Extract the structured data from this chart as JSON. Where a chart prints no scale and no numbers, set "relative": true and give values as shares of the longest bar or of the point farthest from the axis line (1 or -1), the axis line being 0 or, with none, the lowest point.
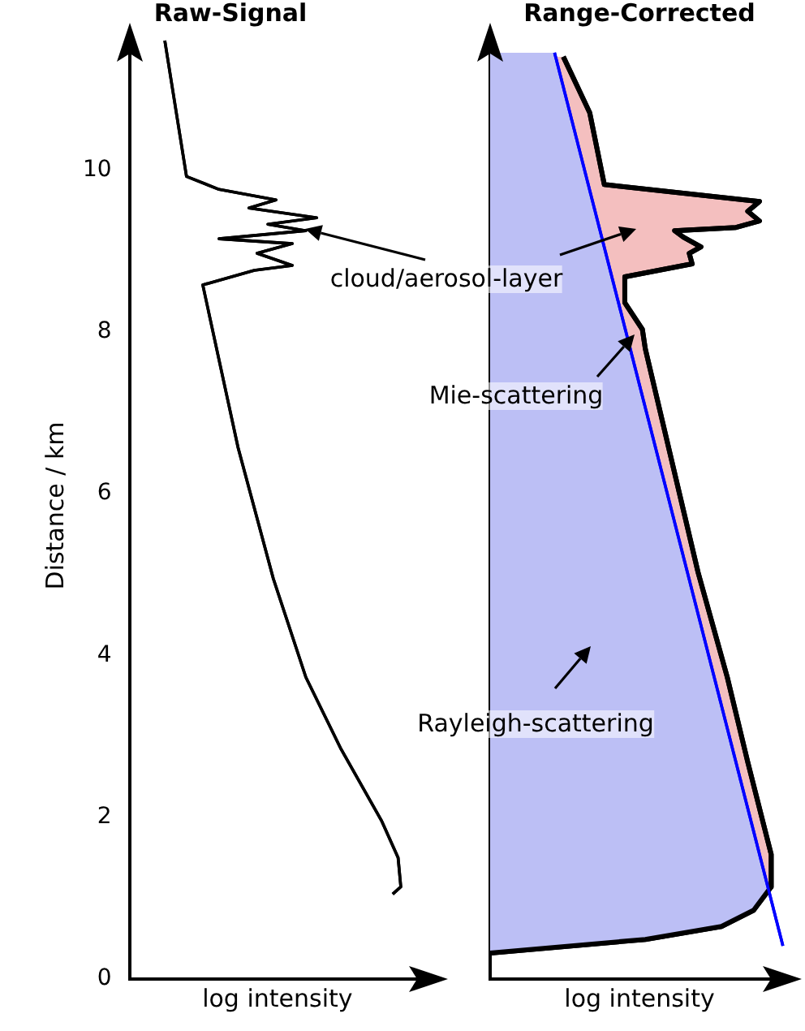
{
  "chart_data": [
    {
      "type": "line",
      "title": "Raw-Signal",
      "xlabel": "log intensity",
      "ylabel": "Distance / km",
      "orientation": "horizontal",
      "relative": true,
      "ylim": [
        0,
        11.7
      ],
      "yticks": [
        0,
        2,
        4,
        6,
        8,
        10
      ],
      "tick_labels": "y",
      "grid": false,
      "legend": false,
      "series": [
        {
          "color": "#000000",
          "x": [
            11.6,
            9.92,
            9.76,
            9.63,
            9.53,
            9.41,
            9.33,
            9.25,
            9.15,
            9.09,
            8.97,
            8.82,
            8.76,
            8.58,
            6.57,
            4.95,
            3.73,
            2.84,
            1.95,
            1.5,
            1.14,
            1.05
          ],
          "values": [
            0.13,
            0.21,
            0.33,
            0.54,
            0.44,
            0.69,
            0.51,
            0.65,
            0.33,
            0.6,
            0.47,
            0.6,
            0.46,
            0.27,
            0.4,
            0.53,
            0.65,
            0.78,
            0.93,
            0.99,
            1.0,
            0.97
          ]
        }
      ],
      "annotations": [
        "cloud/aerosol-layer"
      ]
    },
    {
      "type": "line",
      "title": "Range-Corrected",
      "xlabel": "log intensity",
      "orientation": "horizontal",
      "relative": true,
      "ylim": [
        0,
        11.7
      ],
      "tick_labels": false,
      "grid": false,
      "legend": false,
      "series": [
        {
          "type": "area",
          "color": "#f4bfbf",
          "x": [
            11.4,
            10.71,
            9.82,
            9.61,
            9.49,
            9.37,
            9.29,
            9.25,
            9.17,
            9.05,
            8.97,
            8.84,
            8.68,
            8.36,
            8.03,
            7.79,
            6.41,
            5.03,
            3.73,
            2.68,
            1.54,
            1.14,
            0.85,
            0.65,
            0.49,
            0.32
          ],
          "values": [
            0.25,
            0.34,
            0.39,
            0.92,
            0.88,
            0.92,
            0.84,
            0.63,
            0.66,
            0.72,
            0.68,
            0.69,
            0.46,
            0.46,
            0.52,
            0.53,
            0.62,
            0.71,
            0.81,
            0.88,
            0.96,
            0.96,
            0.9,
            0.79,
            0.53,
            0
          ]
        },
        {
          "type": "area",
          "color": "#bcbff5",
          "x": [
            11.45,
            1.1,
            0.85,
            0.65,
            0.49,
            0.32
          ],
          "values": [
            0.22,
            0.95,
            0.9,
            0.79,
            0.53,
            0
          ]
        },
        {
          "type": "line",
          "color": "#0000ff",
          "x": [
            11.45,
            0.41
          ],
          "values": [
            0.22,
            1.0
          ]
        }
      ],
      "annotations": [
        "Mie-scattering",
        "Rayleigh-scattering"
      ]
    }
  ]
}
